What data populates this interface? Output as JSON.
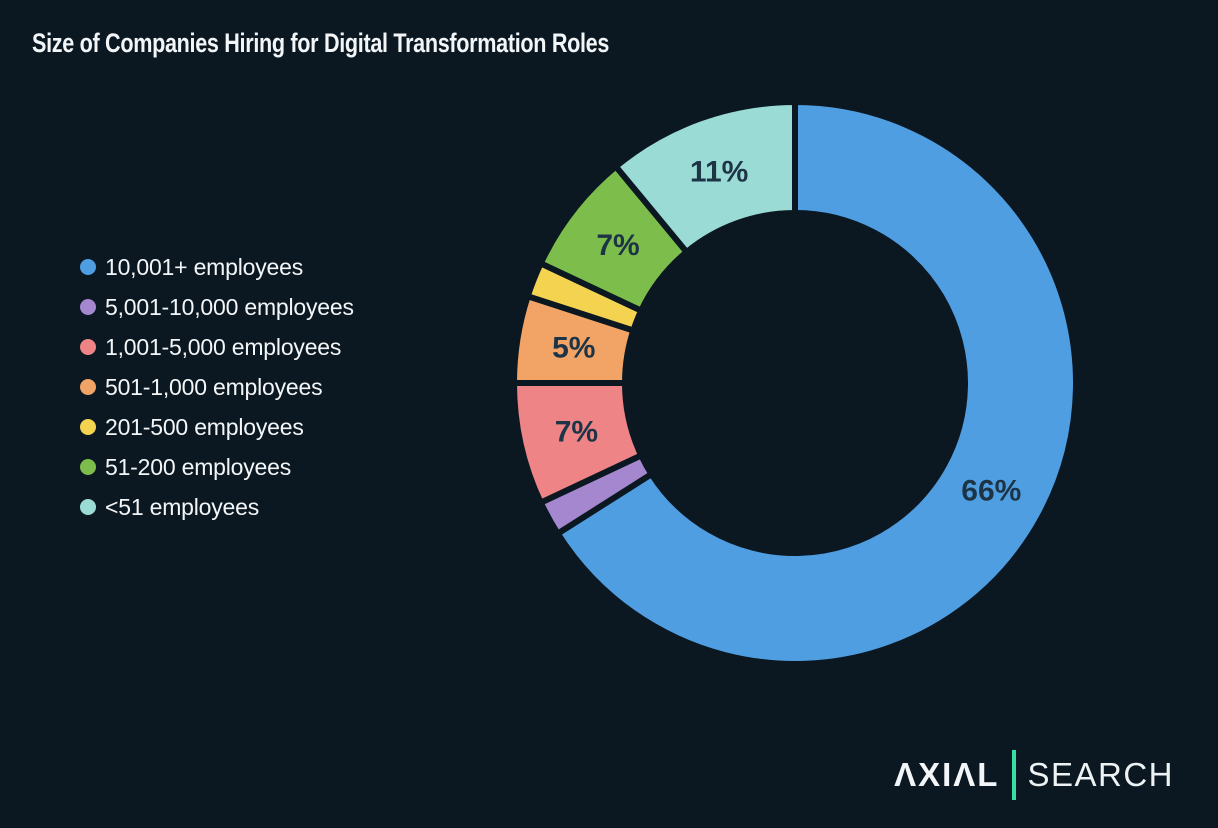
{
  "title": "Size of Companies Hiring for Digital Transformation Roles",
  "colors": {
    "background": "#0b1821",
    "title_text": "#f3f6f8",
    "legend_text": "#f3f6f8",
    "slice_label_text": "#1d3446",
    "slice_separator": "#0b1821",
    "logo_text": "#f3f6f8",
    "logo_divider": "#35dfa6"
  },
  "legend": {
    "items": [
      {
        "label": "10,001+ employees",
        "color": "#4f9ee2"
      },
      {
        "label": "5,001-10,000 employees",
        "color": "#a487ce"
      },
      {
        "label": "1,001-5,000 employees",
        "color": "#ef8487"
      },
      {
        "label": "501-1,000 employees",
        "color": "#f2a366"
      },
      {
        "label": "201-500 employees",
        "color": "#f4d351"
      },
      {
        "label": "51-200 employees",
        "color": "#7dbd4b"
      },
      {
        "label": "<51 employees",
        "color": "#9bdbd6"
      }
    ]
  },
  "chart_data": {
    "type": "pie",
    "subtype": "donut",
    "title": "Size of Companies Hiring for Digital Transformation Roles",
    "categories": [
      "10,001+ employees",
      "5,001-10,000 employees",
      "1,001-5,000 employees",
      "501-1,000 employees",
      "201-500 employees",
      "51-200 employees",
      "<51 employees"
    ],
    "values": [
      66,
      2,
      7,
      5,
      2,
      7,
      11
    ],
    "unit": "%",
    "colors": [
      "#4f9ee2",
      "#a487ce",
      "#ef8487",
      "#f2a366",
      "#f4d351",
      "#7dbd4b",
      "#9bdbd6"
    ],
    "labels_shown": [
      "66%",
      null,
      "7%",
      "5%",
      null,
      "7%",
      "11%"
    ],
    "start_angle_deg": 0,
    "direction": "clockwise",
    "legend_position": "left",
    "inner_radius_ratio": 0.61
  },
  "logo": {
    "brand": "AXIAL",
    "brand_display": "ΛXIΛL",
    "suffix": "SEARCH"
  }
}
